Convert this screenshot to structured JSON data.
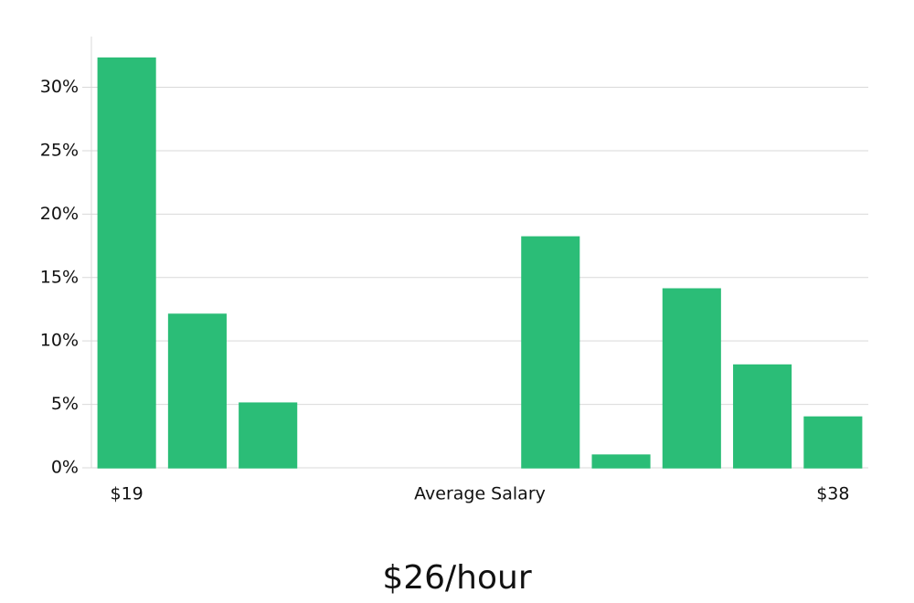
{
  "chart_data": {
    "type": "bar",
    "categories": [
      "$19",
      null,
      null,
      null,
      null,
      null,
      null,
      null,
      null,
      null,
      "$38"
    ],
    "values": [
      32.3,
      12.1,
      5.1,
      0,
      0,
      0,
      18.2,
      1.0,
      14.1,
      8.1,
      4.0
    ],
    "colors": [
      "#2bbd77",
      "#2bbd77",
      "#2bbd77",
      "#2bbd77",
      "#1c1f4a",
      "#2bbd77",
      "#2bbd77",
      "#2bbd77",
      "#2bbd77",
      "#2bbd77",
      "#2bbd77"
    ],
    "xlabel": "Average Salary",
    "summary": "$26/hour",
    "ylim": [
      0,
      34
    ],
    "yticks": [
      {
        "value": 0,
        "label": "0%"
      },
      {
        "value": 5,
        "label": "5%"
      },
      {
        "value": 10,
        "label": "10%"
      },
      {
        "value": 15,
        "label": "15%"
      },
      {
        "value": 20,
        "label": "20%"
      },
      {
        "value": 25,
        "label": "25%"
      },
      {
        "value": 30,
        "label": "30%"
      }
    ],
    "grid": true
  }
}
